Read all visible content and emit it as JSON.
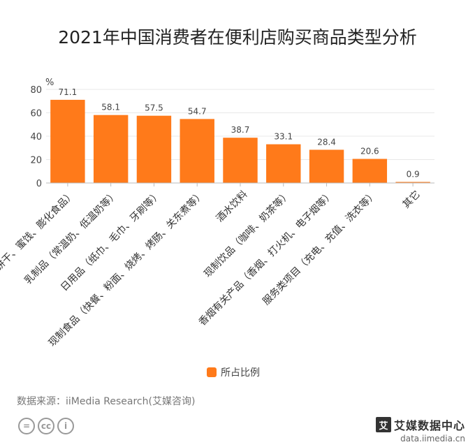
{
  "title": "2021年中国消费者在便利店购买商品类型分析",
  "source": "数据来源：iiMedia Research(艾媒咨询)",
  "brand": {
    "name": "艾媒数据中心",
    "url": "data.iimedia.cn",
    "mark": "艾"
  },
  "license_icons": [
    "equals-icon",
    "cc-icon",
    "person-icon"
  ],
  "license_glyphs": [
    "=",
    "cc",
    "i"
  ],
  "chart_data": {
    "type": "bar",
    "title": "2021年中国消费者在便利店购买商品类型分析",
    "ylabel": "%",
    "xlabel": "",
    "ylim": [
      0,
      80
    ],
    "yticks": [
      0,
      20,
      40,
      60,
      80
    ],
    "grid": true,
    "legend_position": "bottom",
    "color": "#FF7A1A",
    "categories": [
      "零食（饼干、蜜饯、膨化食品）",
      "乳制品（常温奶、低温奶等）",
      "日用品（纸巾、毛巾、牙刷等）",
      "现制食品（快餐、粉面、烧烤、烤肠、关东煮等）",
      "酒水饮料",
      "现制饮品（咖啡、奶茶等）",
      "香烟有关产品（香烟、打火机、电子烟等）",
      "服务类项目（充电、充值、洗衣等）",
      "其它"
    ],
    "series": [
      {
        "name": "所占比例",
        "values": [
          71.1,
          58.1,
          57.5,
          54.7,
          38.7,
          33.1,
          28.4,
          20.6,
          0.9
        ]
      }
    ]
  }
}
